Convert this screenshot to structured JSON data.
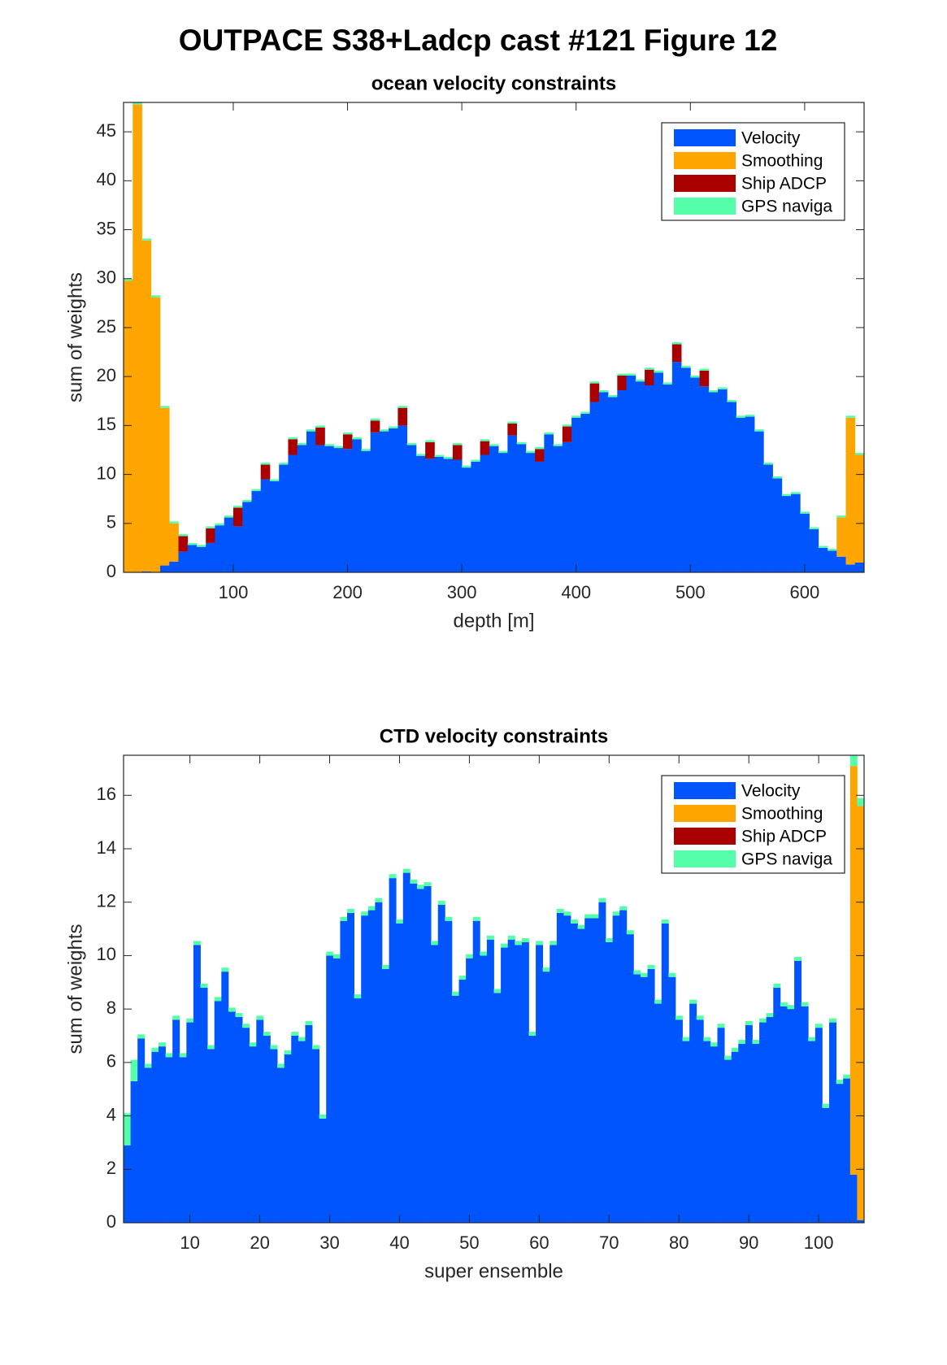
{
  "title": "OUTPACE S38+Ladcp cast #121  Figure 12",
  "chart_data": [
    {
      "type": "bar",
      "stacked": true,
      "title": "ocean velocity constraints",
      "xlabel": "depth [m]",
      "ylabel": "sum of weights",
      "legend": "northeast",
      "x": [
        8,
        16,
        24,
        32,
        40,
        48,
        56,
        64,
        72,
        80,
        88,
        96,
        104,
        112,
        120,
        128,
        136,
        144,
        152,
        160,
        168,
        176,
        184,
        192,
        200,
        208,
        216,
        224,
        232,
        240,
        248,
        256,
        264,
        272,
        280,
        288,
        296,
        304,
        312,
        320,
        328,
        336,
        344,
        352,
        360,
        368,
        376,
        384,
        392,
        400,
        408,
        416,
        424,
        432,
        440,
        448,
        456,
        464,
        472,
        480,
        488,
        496,
        504,
        512,
        520,
        528,
        536,
        544,
        552,
        560,
        568,
        576,
        584,
        592,
        600,
        608,
        616,
        624,
        632,
        640,
        648
      ],
      "xlim": [
        4,
        652
      ],
      "ylim": [
        0,
        48
      ],
      "xticks": [
        100,
        200,
        300,
        400,
        500,
        600
      ],
      "yticks": [
        0,
        5,
        10,
        15,
        20,
        25,
        30,
        35,
        40,
        45
      ],
      "series": [
        {
          "name": "Velocity",
          "color": "#0055ff",
          "values": [
            0,
            0,
            0.1,
            0,
            0.7,
            1.1,
            2.1,
            2.8,
            2.6,
            3,
            4.8,
            5.6,
            4.7,
            7.2,
            8.3,
            9.5,
            9.3,
            11,
            12,
            13,
            14.4,
            13,
            12.9,
            12.7,
            12.6,
            13.6,
            12.4,
            14.3,
            14.4,
            14.7,
            15,
            13,
            11.9,
            11.6,
            11.8,
            11.6,
            11.5,
            10.7,
            11.3,
            12,
            12.9,
            12.2,
            14,
            13.1,
            12.2,
            11.3,
            14.1,
            12.9,
            13.3,
            15.8,
            16.2,
            17.4,
            18.4,
            17.9,
            18.6,
            20.1,
            19.5,
            19.1,
            20.4,
            19.2,
            21.5,
            20.9,
            19.9,
            19,
            18.4,
            18.7,
            17.4,
            15.8,
            15.9,
            14.4,
            11,
            9.6,
            7.8,
            8,
            6,
            4.4,
            2.5,
            2.2,
            1.6,
            0.8,
            1
          ]
        },
        {
          "name": "Smoothing",
          "color": "#ffa500",
          "values": [
            29.8,
            47.8,
            33.8,
            28.1,
            16.1,
            3.9,
            0,
            0,
            0,
            0,
            0,
            0,
            0,
            0,
            0,
            0,
            0,
            0,
            0,
            0,
            0,
            0,
            0,
            0,
            0,
            0,
            0,
            0,
            0,
            0,
            0,
            0,
            0,
            0,
            0,
            0,
            0,
            0,
            0,
            0,
            0,
            0,
            0,
            0,
            0,
            0,
            0,
            0,
            0,
            0,
            0,
            0,
            0,
            0,
            0,
            0,
            0,
            0,
            0,
            0,
            0,
            0,
            0,
            0,
            0,
            0,
            0,
            0,
            0,
            0,
            0,
            0,
            0,
            0,
            0,
            0,
            0,
            0,
            4,
            15,
            11
          ]
        },
        {
          "name": "Ship ADCP",
          "color": "#aa0000",
          "values": [
            0,
            0,
            0,
            0,
            0,
            0,
            1.6,
            0,
            0,
            1.5,
            0,
            0,
            1.9,
            0,
            0,
            1.5,
            0,
            0,
            1.6,
            0,
            0,
            1.8,
            0,
            0,
            1.5,
            0,
            0,
            1.2,
            0,
            0,
            1.8,
            0,
            0,
            1.7,
            0,
            0,
            1.5,
            0,
            0,
            1.4,
            0,
            0,
            1.2,
            0,
            0,
            1.3,
            0,
            0,
            1.6,
            0,
            0,
            1.9,
            0,
            0,
            1.5,
            0,
            0,
            1.6,
            0,
            0,
            1.8,
            0,
            0,
            1.6,
            0,
            0,
            0,
            0,
            0,
            0,
            0,
            0,
            0,
            0,
            0,
            0,
            0,
            0,
            0,
            0,
            0
          ]
        },
        {
          "name": "GPS naviga",
          "color": "#55ffaa",
          "values": [
            0.2,
            0.2,
            0.2,
            0.2,
            0.2,
            0.2,
            0.2,
            0.2,
            0.2,
            0.2,
            0.2,
            0.2,
            0.2,
            0.2,
            0.2,
            0.2,
            0.2,
            0.2,
            0.2,
            0.2,
            0.2,
            0.2,
            0.2,
            0.2,
            0.2,
            0.2,
            0.2,
            0.2,
            0.2,
            0.2,
            0.2,
            0.2,
            0.2,
            0.2,
            0.2,
            0.2,
            0.2,
            0.2,
            0.2,
            0.2,
            0.2,
            0.2,
            0.2,
            0.2,
            0.2,
            0.2,
            0.2,
            0.2,
            0.2,
            0.2,
            0.2,
            0.2,
            0.2,
            0.2,
            0.2,
            0.2,
            0.2,
            0.2,
            0.2,
            0.2,
            0.2,
            0.2,
            0.2,
            0.2,
            0.2,
            0.2,
            0.2,
            0.2,
            0.2,
            0.2,
            0.2,
            0.2,
            0.2,
            0.2,
            0.2,
            0.2,
            0.2,
            0.2,
            0.2,
            0.2,
            0.2
          ]
        }
      ]
    },
    {
      "type": "bar",
      "stacked": true,
      "title": "CTD velocity constraints",
      "xlabel": "super ensemble",
      "ylabel": "sum of weights",
      "legend": "northeast",
      "x": [
        1,
        2,
        3,
        4,
        5,
        6,
        7,
        8,
        9,
        10,
        11,
        12,
        13,
        14,
        15,
        16,
        17,
        18,
        19,
        20,
        21,
        22,
        23,
        24,
        25,
        26,
        27,
        28,
        29,
        30,
        31,
        32,
        33,
        34,
        35,
        36,
        37,
        38,
        39,
        40,
        41,
        42,
        43,
        44,
        45,
        46,
        47,
        48,
        49,
        50,
        51,
        52,
        53,
        54,
        55,
        56,
        57,
        58,
        59,
        60,
        61,
        62,
        63,
        64,
        65,
        66,
        67,
        68,
        69,
        70,
        71,
        72,
        73,
        74,
        75,
        76,
        77,
        78,
        79,
        80,
        81,
        82,
        83,
        84,
        85,
        86,
        87,
        88,
        89,
        90,
        91,
        92,
        93,
        94,
        95,
        96,
        97,
        98,
        99,
        100,
        101,
        102,
        103,
        104,
        105,
        106
      ],
      "xlim": [
        0.5,
        106.5
      ],
      "ylim": [
        0,
        17.5
      ],
      "xticks": [
        10,
        20,
        30,
        40,
        50,
        60,
        70,
        80,
        90,
        100
      ],
      "yticks": [
        0,
        2,
        4,
        6,
        8,
        10,
        12,
        14,
        16
      ],
      "series": [
        {
          "name": "Velocity",
          "color": "#0055ff",
          "values": [
            2.9,
            5.3,
            6.9,
            5.8,
            6.4,
            6.6,
            6.2,
            7.6,
            6.2,
            7.5,
            10.4,
            8.8,
            6.5,
            8.3,
            9.4,
            7.9,
            7.7,
            7.3,
            6.6,
            7.6,
            7,
            6.5,
            5.8,
            6.3,
            7,
            6.8,
            7.4,
            6.5,
            3.9,
            10,
            9.9,
            11.3,
            11.6,
            8.4,
            11.5,
            11.7,
            12,
            9.5,
            12.9,
            11.2,
            13.1,
            12.7,
            12.5,
            12.6,
            10.4,
            11.9,
            11.3,
            8.5,
            9.1,
            9.9,
            11.3,
            10,
            10.6,
            8.6,
            10.3,
            10.6,
            10.4,
            10.5,
            7,
            10.4,
            9.4,
            10.4,
            11.6,
            11.5,
            11.2,
            11,
            11.4,
            11.4,
            12,
            10.5,
            11.5,
            11.7,
            10.8,
            9.3,
            9.2,
            9.5,
            8.2,
            11.2,
            9.2,
            7.6,
            6.8,
            8.2,
            7.6,
            6.8,
            6.6,
            7.3,
            6.1,
            6.4,
            6.7,
            7.4,
            6.7,
            7.5,
            7.7,
            8.8,
            8.1,
            8,
            9.8,
            8.1,
            6.8,
            7.3,
            4.3,
            7.5,
            5.2,
            5.4,
            1.8,
            0.1
          ]
        },
        {
          "name": "Smoothing",
          "color": "#ffa500",
          "values": [
            0,
            0,
            0,
            0,
            0,
            0,
            0,
            0,
            0,
            0,
            0,
            0,
            0,
            0,
            0,
            0,
            0,
            0,
            0,
            0,
            0,
            0,
            0,
            0,
            0,
            0,
            0,
            0,
            0,
            0,
            0,
            0,
            0,
            0,
            0,
            0,
            0,
            0,
            0,
            0,
            0,
            0,
            0,
            0,
            0,
            0,
            0,
            0,
            0,
            0,
            0,
            0,
            0,
            0,
            0,
            0,
            0,
            0,
            0,
            0,
            0,
            0,
            0,
            0,
            0,
            0,
            0,
            0,
            0,
            0,
            0,
            0,
            0,
            0,
            0,
            0,
            0,
            0,
            0,
            0,
            0,
            0,
            0,
            0,
            0,
            0,
            0,
            0,
            0,
            0,
            0,
            0,
            0,
            0,
            0,
            0,
            0,
            0,
            0,
            0,
            0,
            0,
            0,
            0,
            15.3,
            15.5
          ]
        },
        {
          "name": "Ship ADCP",
          "color": "#aa0000",
          "values": [
            0,
            0,
            0,
            0,
            0,
            0,
            0,
            0,
            0,
            0,
            0,
            0,
            0,
            0,
            0,
            0,
            0,
            0,
            0,
            0,
            0,
            0,
            0,
            0,
            0,
            0,
            0,
            0,
            0,
            0,
            0,
            0,
            0,
            0,
            0,
            0,
            0,
            0,
            0,
            0,
            0,
            0,
            0,
            0,
            0,
            0,
            0,
            0,
            0,
            0,
            0,
            0,
            0,
            0,
            0,
            0,
            0,
            0,
            0,
            0,
            0,
            0,
            0,
            0,
            0,
            0,
            0,
            0,
            0,
            0,
            0,
            0,
            0,
            0,
            0,
            0,
            0,
            0,
            0,
            0,
            0,
            0,
            0,
            0,
            0,
            0,
            0,
            0,
            0,
            0,
            0,
            0,
            0,
            0,
            0,
            0,
            0,
            0,
            0,
            0,
            0,
            0,
            0,
            0,
            0,
            0
          ]
        },
        {
          "name": "GPS naviga",
          "color": "#55ffaa",
          "values": [
            1.2,
            0.8,
            0.15,
            0.15,
            0.15,
            0.15,
            0.15,
            0.15,
            0.15,
            0.15,
            0.15,
            0.15,
            0.15,
            0.15,
            0.15,
            0.15,
            0.15,
            0.15,
            0.15,
            0.15,
            0.15,
            0.15,
            0.15,
            0.15,
            0.15,
            0.15,
            0.15,
            0.15,
            0.15,
            0.15,
            0.15,
            0.15,
            0.15,
            0.15,
            0.15,
            0.15,
            0.15,
            0.15,
            0.15,
            0.15,
            0.15,
            0.15,
            0.15,
            0.15,
            0.15,
            0.15,
            0.15,
            0.15,
            0.15,
            0.15,
            0.15,
            0.15,
            0.15,
            0.15,
            0.15,
            0.15,
            0.15,
            0.15,
            0.15,
            0.15,
            0.15,
            0.15,
            0.15,
            0.15,
            0.15,
            0.15,
            0.15,
            0.15,
            0.15,
            0.15,
            0.15,
            0.15,
            0.15,
            0.15,
            0.15,
            0.15,
            0.15,
            0.15,
            0.15,
            0.15,
            0.15,
            0.15,
            0.15,
            0.15,
            0.15,
            0.15,
            0.15,
            0.15,
            0.15,
            0.15,
            0.15,
            0.15,
            0.15,
            0.15,
            0.15,
            0.15,
            0.15,
            0.15,
            0.15,
            0.15,
            0.15,
            0.15,
            0.15,
            0.15,
            0.4,
            0.3
          ]
        }
      ]
    }
  ]
}
